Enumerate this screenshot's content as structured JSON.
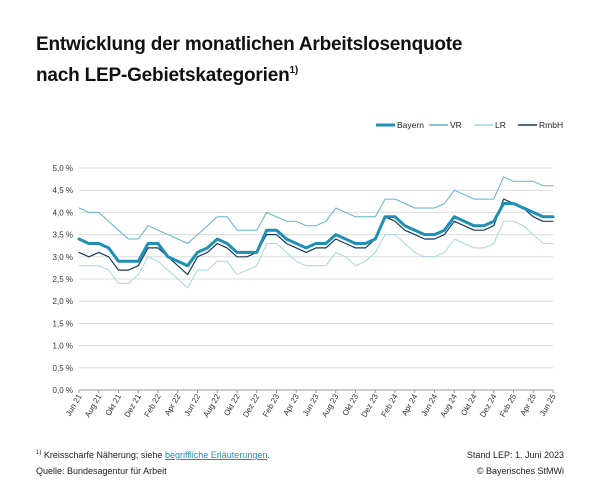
{
  "title": {
    "line1": "Entwicklung der monatlichen Arbeitslosenquote",
    "line2": "nach LEP-Gebietskategorien",
    "footnote_mark": "1)"
  },
  "footer": {
    "footnote_mark": "1)",
    "note_text": "Kreisscharfe Näherung; siehe ",
    "note_link": "begriffliche Erläuterungen",
    "note_end": ".",
    "source": "Quelle: Bundesagentur für Arbeit",
    "stand": "Stand LEP: 1. Juni 2023",
    "copyright": "© Bayerisches StMWi"
  },
  "chart_data": {
    "type": "line",
    "title": "Entwicklung der monatlichen Arbeitslosenquote nach LEP-Gebietskategorien",
    "xlabel": "",
    "ylabel": "",
    "ylim": [
      0,
      5
    ],
    "ytick_labels": [
      "0,0 %",
      "0,5 %",
      "1,0 %",
      "1,5 %",
      "2,0 %",
      "2,5 %",
      "3,0 %",
      "3,5 %",
      "4,0 %",
      "4,5 %",
      "5,0 %"
    ],
    "categories": [
      "Jun 21",
      "Jul 21",
      "Aug 21",
      "Sep 21",
      "Okt 21",
      "Nov 21",
      "Dez 21",
      "Jan 22",
      "Feb 22",
      "Mrz 22",
      "Apr 22",
      "Mai 22",
      "Jun 22",
      "Jul 22",
      "Aug 22",
      "Sep 22",
      "Okt 22",
      "Nov 22",
      "Dez 22",
      "Jan 23",
      "Feb 23",
      "Mrz 23",
      "Apr 23",
      "Mai 23",
      "Jun 23",
      "Jul 23",
      "Aug 23",
      "Sep 23",
      "Okt 23",
      "Nov 23",
      "Dez 23",
      "Jan 24",
      "Feb 24",
      "Mrz 24",
      "Apr 24",
      "Mai 24",
      "Jun 24",
      "Jul 24",
      "Aug 24",
      "Sep 24",
      "Okt 24",
      "Nov 24",
      "Dez 24",
      "Jan 25",
      "Feb 25",
      "Mrz 25",
      "Apr 25",
      "Mai 25",
      "Jun 25"
    ],
    "xtick_labels": [
      "Jun 21",
      "Aug 21",
      "Okt 21",
      "Dez 21",
      "Feb 22",
      "Apr 22",
      "Jun 22",
      "Aug 22",
      "Okt 22",
      "Dez 22",
      "Feb 23",
      "Apr 23",
      "Jun 23",
      "Aug 23",
      "Okt 23",
      "Dez 23",
      "Feb 24",
      "Apr 24",
      "Jun 24",
      "Aug 24",
      "Okt 24",
      "Dez 24",
      "Feb 25",
      "Apr 25",
      "Jun 25"
    ],
    "legend_position": "top-right",
    "grid": true,
    "series": [
      {
        "name": "Bayern",
        "color": "#1f8fb3",
        "width": 3,
        "values": [
          3.4,
          3.3,
          3.3,
          3.2,
          2.9,
          2.9,
          2.9,
          3.3,
          3.3,
          3.0,
          2.9,
          2.8,
          3.1,
          3.2,
          3.4,
          3.3,
          3.1,
          3.1,
          3.1,
          3.6,
          3.6,
          3.4,
          3.3,
          3.2,
          3.3,
          3.3,
          3.5,
          3.4,
          3.3,
          3.3,
          3.4,
          3.9,
          3.9,
          3.7,
          3.6,
          3.5,
          3.5,
          3.6,
          3.9,
          3.8,
          3.7,
          3.7,
          3.8,
          4.2,
          4.2,
          4.1,
          4.0,
          3.9,
          3.9
        ]
      },
      {
        "name": "VR",
        "color": "#5fb3cc",
        "width": 1,
        "values": [
          4.1,
          4.0,
          4.0,
          3.8,
          3.6,
          3.4,
          3.4,
          3.7,
          3.6,
          3.5,
          3.4,
          3.3,
          3.5,
          3.7,
          3.9,
          3.9,
          3.6,
          3.6,
          3.6,
          4.0,
          3.9,
          3.8,
          3.8,
          3.7,
          3.7,
          3.8,
          4.1,
          4.0,
          3.9,
          3.9,
          3.9,
          4.3,
          4.3,
          4.2,
          4.1,
          4.1,
          4.1,
          4.2,
          4.5,
          4.4,
          4.3,
          4.3,
          4.3,
          4.8,
          4.7,
          4.7,
          4.7,
          4.6,
          4.6
        ]
      },
      {
        "name": "LR",
        "color": "#a4d6e4",
        "width": 1,
        "values": [
          2.8,
          2.8,
          2.8,
          2.7,
          2.4,
          2.4,
          2.6,
          3.0,
          2.9,
          2.7,
          2.5,
          2.3,
          2.7,
          2.7,
          2.9,
          2.9,
          2.6,
          2.7,
          2.8,
          3.3,
          3.3,
          3.1,
          2.9,
          2.8,
          2.8,
          2.8,
          3.1,
          3.0,
          2.8,
          2.9,
          3.1,
          3.5,
          3.5,
          3.3,
          3.1,
          3.0,
          3.0,
          3.1,
          3.4,
          3.3,
          3.2,
          3.2,
          3.3,
          3.8,
          3.8,
          3.7,
          3.5,
          3.3,
          3.3
        ]
      },
      {
        "name": "RmbH",
        "color": "#123c5e",
        "width": 1.2,
        "values": [
          3.1,
          3.0,
          3.1,
          3.0,
          2.7,
          2.7,
          2.8,
          3.2,
          3.2,
          3.0,
          2.8,
          2.6,
          3.0,
          3.1,
          3.3,
          3.2,
          3.0,
          3.0,
          3.1,
          3.5,
          3.5,
          3.3,
          3.2,
          3.1,
          3.2,
          3.2,
          3.4,
          3.3,
          3.2,
          3.2,
          3.4,
          3.9,
          3.8,
          3.6,
          3.5,
          3.4,
          3.4,
          3.5,
          3.8,
          3.7,
          3.6,
          3.6,
          3.7,
          4.3,
          4.2,
          4.1,
          3.9,
          3.8,
          3.8
        ]
      }
    ]
  }
}
